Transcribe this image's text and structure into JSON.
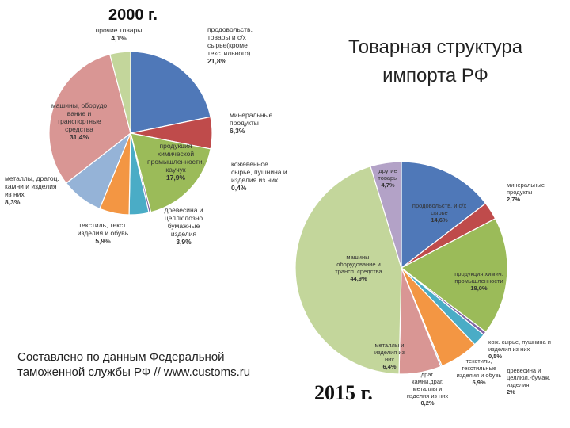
{
  "slide": {
    "title_line1": "Товарная структура",
    "title_line2": "импорта РФ",
    "source_line1": "Составлено по данным Федеральной",
    "source_line2": "таможенной службы РФ // www.customs.ru"
  },
  "chart_data": [
    {
      "type": "pie",
      "title": "2000 г.",
      "slices": [
        {
          "label": [
            "продовольств.",
            "товары и с/х",
            "сырье(кроме",
            "текстильного)"
          ],
          "value": 21.8,
          "value_label": "21,8%",
          "color": "#4f78b8"
        },
        {
          "label": [
            "минеральные",
            "продукты"
          ],
          "value": 6.3,
          "value_label": "6,3%",
          "color": "#bf4b4b"
        },
        {
          "label": [
            "продукция",
            "химической",
            "промышленности,",
            "каучук"
          ],
          "value": 17.9,
          "value_label": "17,9%",
          "color": "#9bbb59"
        },
        {
          "label": [
            "кожевенное",
            "сырье, пушнина и",
            "изделия из них"
          ],
          "value": 0.4,
          "value_label": "0,4%",
          "color": "#7f64a2"
        },
        {
          "label": [
            "древесина и",
            "целлюлозно",
            "бумажные",
            "изделия"
          ],
          "value": 3.9,
          "value_label": "3,9%",
          "color": "#4aacc6"
        },
        {
          "label": [
            "текстиль, текст.",
            "изделия и обувь"
          ],
          "value": 5.9,
          "value_label": "5,9%",
          "color": "#f39643"
        },
        {
          "label": [
            "металлы, драгоц.",
            "камни и изделия",
            "из них"
          ],
          "value": 8.3,
          "value_label": "8,3%",
          "color": "#95b3d7"
        },
        {
          "label": [
            "машины, оборудо",
            "вание и",
            "транспортные",
            "средства"
          ],
          "value": 31.4,
          "value_label": "31,4%",
          "color": "#d99694"
        },
        {
          "label": [
            "прочие товары"
          ],
          "value": 4.1,
          "value_label": "4,1%",
          "color": "#c3d69b"
        }
      ]
    },
    {
      "type": "pie",
      "title": "2015 г.",
      "slices": [
        {
          "label": [
            "продовольств. и с/х",
            "сырье"
          ],
          "value": 14.6,
          "value_label": "14,6%",
          "color": "#4f78b8"
        },
        {
          "label": [
            "минеральные",
            "продукты"
          ],
          "value": 2.7,
          "value_label": "2,7%",
          "color": "#bf4b4b"
        },
        {
          "label": [
            "продукция химич.",
            "промышленности"
          ],
          "value": 18.0,
          "value_label": "18,0%",
          "color": "#9bbb59"
        },
        {
          "label": [
            "кож. сырье, пушнина и",
            "изделия из них"
          ],
          "value": 0.5,
          "value_label": "0,5%",
          "color": "#7f64a2"
        },
        {
          "label": [
            "древесина и",
            "целлюл.-бумаж.",
            "изделия"
          ],
          "value": 2.0,
          "value_label": "2%",
          "color": "#4aacc6"
        },
        {
          "label": [
            "текстиль,",
            "текстильные",
            "изделия и обувь"
          ],
          "value": 5.9,
          "value_label": "5,9%",
          "color": "#f39643"
        },
        {
          "label": [
            "драг.",
            "камни,драг.",
            "металлы и",
            "изделия из них"
          ],
          "value": 0.2,
          "value_label": "0,2%",
          "color": "#95b3d7"
        },
        {
          "label": [
            "металлы и",
            "изделия из",
            "них"
          ],
          "value": 6.4,
          "value_label": "6,4%",
          "color": "#d99694"
        },
        {
          "label": [
            "машины,",
            "оборудование и",
            "трансп. средства"
          ],
          "value": 44.9,
          "value_label": "44,9%",
          "color": "#c3d69b"
        },
        {
          "label": [
            "другие",
            "товары"
          ],
          "value": 4.7,
          "value_label": "4,7%",
          "color": "#b3a2c7"
        }
      ]
    }
  ]
}
